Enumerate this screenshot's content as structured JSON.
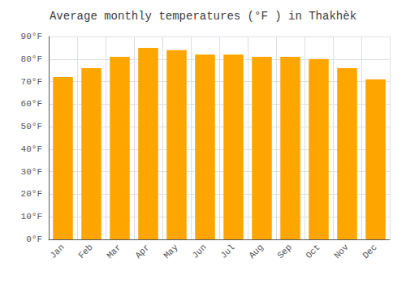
{
  "chart_data": {
    "type": "bar",
    "title": "Average monthly temperatures (°F ) in Thakhèk",
    "categories": [
      "Jan",
      "Feb",
      "Mar",
      "Apr",
      "May",
      "Jun",
      "Jul",
      "Aug",
      "Sep",
      "Oct",
      "Nov",
      "Dec"
    ],
    "values": [
      72,
      76,
      81,
      85,
      84,
      82,
      82,
      81,
      81,
      80,
      76,
      71
    ],
    "color": "#FFA500",
    "ylim": [
      0,
      90
    ],
    "yticks": [
      {
        "value": 0,
        "label": "0°F"
      },
      {
        "value": 10,
        "label": "10°F"
      },
      {
        "value": 20,
        "label": "20°F"
      },
      {
        "value": 30,
        "label": "30°F"
      },
      {
        "value": 40,
        "label": "40°F"
      },
      {
        "value": 50,
        "label": "50°F"
      },
      {
        "value": 60,
        "label": "60°F"
      },
      {
        "value": 70,
        "label": "70°F"
      },
      {
        "value": 80,
        "label": "80°F"
      },
      {
        "value": 90,
        "label": "90°F"
      }
    ],
    "grid": true
  }
}
